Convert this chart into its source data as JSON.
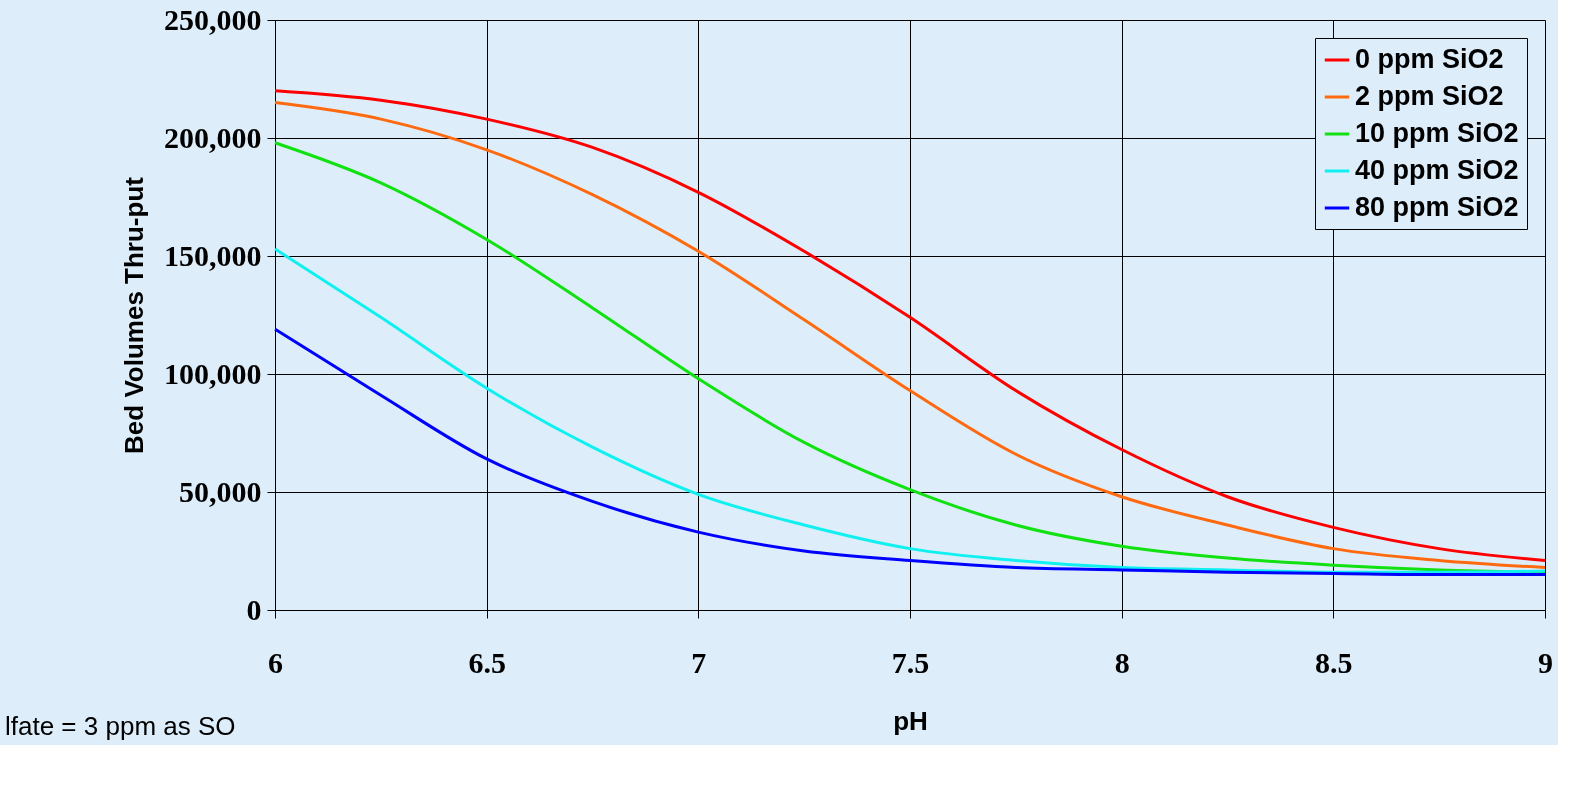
{
  "chart_data": {
    "type": "line",
    "xlabel": "pH",
    "ylabel": "Bed Volumes Thru-put",
    "x": [
      6,
      6.25,
      6.5,
      6.75,
      7,
      7.25,
      7.5,
      7.75,
      8,
      8.25,
      8.5,
      8.75,
      9
    ],
    "series": [
      {
        "name": "0 ppm SiO2",
        "color": "#ff0000",
        "values": [
          220000,
          216000,
          208000,
          196000,
          177000,
          152000,
          124000,
          93000,
          68000,
          48000,
          35000,
          26000,
          21000
        ]
      },
      {
        "name": "2 ppm SiO2",
        "color": "#ff6a10",
        "values": [
          215000,
          208000,
          195000,
          176000,
          152000,
          123000,
          93000,
          66000,
          48000,
          36000,
          26000,
          21000,
          18000
        ]
      },
      {
        "name": "10 ppm SiO2",
        "color": "#11e011",
        "values": [
          198000,
          181000,
          157000,
          128000,
          98000,
          71000,
          51000,
          36000,
          27000,
          22000,
          19000,
          17000,
          16000
        ]
      },
      {
        "name": "40 ppm SiO2",
        "color": "#11f0f0",
        "values": [
          153000,
          124000,
          94000,
          69000,
          49000,
          36000,
          26000,
          21000,
          18000,
          17000,
          16000,
          16000,
          16500
        ]
      },
      {
        "name": "80 ppm SiO2",
        "color": "#0000ff",
        "values": [
          119000,
          91000,
          64000,
          46000,
          33000,
          25000,
          21000,
          18000,
          17000,
          16000,
          15500,
          15000,
          15000
        ]
      }
    ],
    "xlim": [
      6,
      9
    ],
    "xticks": [
      6,
      6.5,
      7,
      7.5,
      8,
      8.5,
      9
    ],
    "ylim": [
      0,
      250000
    ],
    "yticks": [
      {
        "value": 0,
        "label": "0"
      },
      {
        "value": 50000,
        "label": "50,000"
      },
      {
        "value": 100000,
        "label": "100,000"
      },
      {
        "value": 150000,
        "label": "150,000"
      },
      {
        "value": 200000,
        "label": "200,000"
      },
      {
        "value": 250000,
        "label": "250,000"
      }
    ],
    "grid": true,
    "legend": "top right",
    "marker": "none",
    "line_style": "solid",
    "annotations": [
      "lfate = 3 ppm as SO"
    ]
  }
}
